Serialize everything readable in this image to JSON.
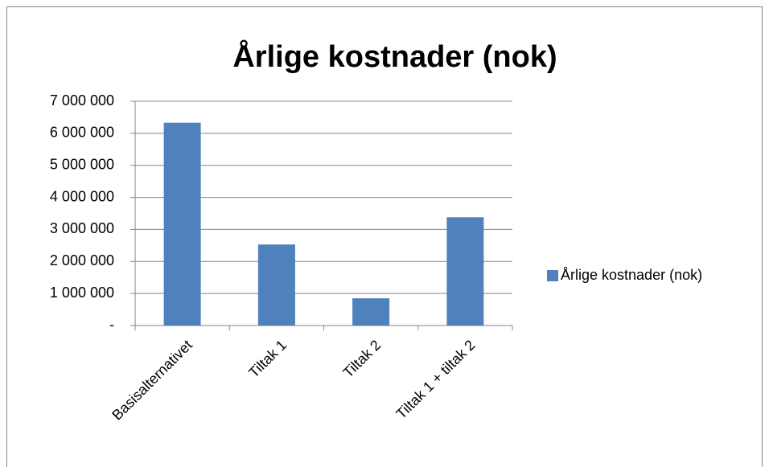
{
  "chart_data": {
    "type": "bar",
    "title": "Årlige kostnader (nok)",
    "categories": [
      "Basisalternativet",
      "Tiltak 1",
      "Tiltak 2",
      "Tiltak 1 + tiltak 2"
    ],
    "series": [
      {
        "name": "Årlige kostnader (nok)",
        "color": "#4f81bd",
        "values": [
          6330000,
          2530000,
          850000,
          3380000
        ]
      }
    ],
    "ylim": [
      0,
      7000000
    ],
    "yticks": [
      {
        "value": 0,
        "label": "-"
      },
      {
        "value": 1000000,
        "label": "1 000 000"
      },
      {
        "value": 2000000,
        "label": "2 000 000"
      },
      {
        "value": 3000000,
        "label": "3 000 000"
      },
      {
        "value": 4000000,
        "label": "4 000 000"
      },
      {
        "value": 5000000,
        "label": "5 000 000"
      },
      {
        "value": 6000000,
        "label": "6 000 000"
      },
      {
        "value": 7000000,
        "label": "7 000 000"
      }
    ],
    "grid": true,
    "legend": "right"
  }
}
